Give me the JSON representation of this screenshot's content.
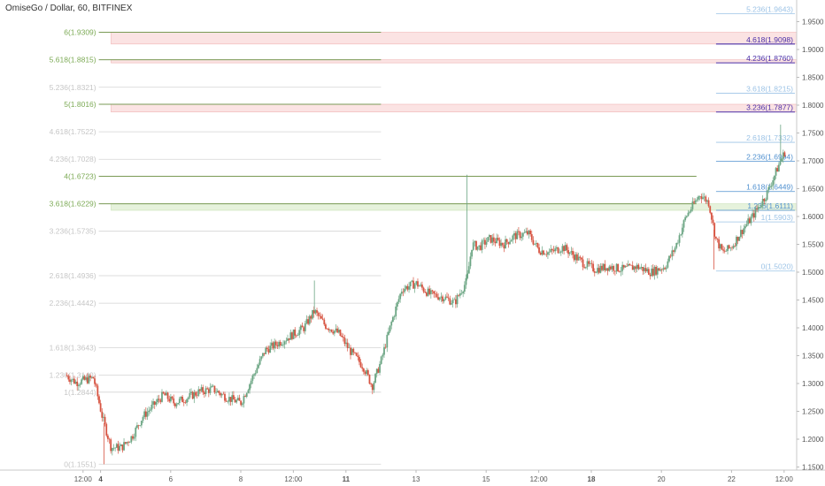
{
  "header": {
    "title": "OmiseGo / Dollar, 60, BITFINEX"
  },
  "colors": {
    "up": "#6ba583",
    "down": "#d75442",
    "fib_green": "#7caa55",
    "fib_grey": "#bdbdbd",
    "fib_blue": "#4e8fcf",
    "fib_purple": "#4a2fa8",
    "fib_light_blue": "#9cc3e6",
    "zone_red": "#fbe3e3",
    "zone_green": "#e6f2dc"
  },
  "chart_data": {
    "type": "candlestick",
    "title": "OmiseGo / Dollar, 60, BITFINEX",
    "y_range": [
      1.14,
      1.98
    ],
    "y_ticks": [
      "1.9500",
      "1.9000",
      "1.8500",
      "1.8000",
      "1.7500",
      "1.7000",
      "1.6500",
      "1.6000",
      "1.5500",
      "1.5000",
      "1.4500",
      "1.4000",
      "1.3500",
      "1.3000",
      "1.2500",
      "1.2000",
      "1.1500"
    ],
    "x_ticks": [
      {
        "label": "12:00",
        "x": 0.5,
        "bold": false
      },
      {
        "label": "4",
        "x": 1,
        "bold": true
      },
      {
        "label": "6",
        "x": 3,
        "bold": false
      },
      {
        "label": "8",
        "x": 5,
        "bold": false
      },
      {
        "label": "12:00",
        "x": 6.5,
        "bold": false
      },
      {
        "label": "11",
        "x": 8,
        "bold": true
      },
      {
        "label": "13",
        "x": 10,
        "bold": false
      },
      {
        "label": "15",
        "x": 12,
        "bold": false
      },
      {
        "label": "12:00",
        "x": 13.5,
        "bold": false
      },
      {
        "label": "18",
        "x": 15,
        "bold": true
      },
      {
        "label": "20",
        "x": 17,
        "bold": false
      },
      {
        "label": "22",
        "x": 19,
        "bold": false
      },
      {
        "label": "12:00",
        "x": 20.5,
        "bold": false
      }
    ],
    "price_path": [
      [
        0,
        1.315
      ],
      [
        0.3,
        1.302
      ],
      [
        0.8,
        1.31
      ],
      [
        1.05,
        1.24
      ],
      [
        1.3,
        1.185
      ],
      [
        1.6,
        1.185
      ],
      [
        1.9,
        1.205
      ],
      [
        2.2,
        1.24
      ],
      [
        2.5,
        1.26
      ],
      [
        2.8,
        1.28
      ],
      [
        3.1,
        1.265
      ],
      [
        3.5,
        1.275
      ],
      [
        3.8,
        1.285
      ],
      [
        4.2,
        1.29
      ],
      [
        4.6,
        1.275
      ],
      [
        5.0,
        1.265
      ],
      [
        5.4,
        1.32
      ],
      [
        5.7,
        1.36
      ],
      [
        6.0,
        1.37
      ],
      [
        6.4,
        1.385
      ],
      [
        6.8,
        1.4
      ],
      [
        7.1,
        1.43
      ],
      [
        7.4,
        1.405
      ],
      [
        7.8,
        1.39
      ],
      [
        8.1,
        1.36
      ],
      [
        8.5,
        1.33
      ],
      [
        8.75,
        1.295
      ],
      [
        9.0,
        1.34
      ],
      [
        9.3,
        1.41
      ],
      [
        9.6,
        1.47
      ],
      [
        10.0,
        1.48
      ],
      [
        10.4,
        1.46
      ],
      [
        10.8,
        1.455
      ],
      [
        11.1,
        1.445
      ],
      [
        11.45,
        1.485
      ],
      [
        11.6,
        1.55
      ],
      [
        11.8,
        1.545
      ],
      [
        12.1,
        1.56
      ],
      [
        12.5,
        1.55
      ],
      [
        12.8,
        1.565
      ],
      [
        13.2,
        1.57
      ],
      [
        13.5,
        1.54
      ],
      [
        13.8,
        1.535
      ],
      [
        14.2,
        1.545
      ],
      [
        14.5,
        1.53
      ],
      [
        14.8,
        1.515
      ],
      [
        15.1,
        1.505
      ],
      [
        15.5,
        1.51
      ],
      [
        15.9,
        1.505
      ],
      [
        16.3,
        1.51
      ],
      [
        16.7,
        1.5
      ],
      [
        17.1,
        1.51
      ],
      [
        17.4,
        1.545
      ],
      [
        17.7,
        1.6
      ],
      [
        17.95,
        1.625
      ],
      [
        18.1,
        1.64
      ],
      [
        18.35,
        1.625
      ],
      [
        18.55,
        1.56
      ],
      [
        18.75,
        1.535
      ],
      [
        19.0,
        1.545
      ],
      [
        19.3,
        1.575
      ],
      [
        19.6,
        1.6
      ],
      [
        20.0,
        1.64
      ],
      [
        20.4,
        1.7
      ],
      [
        20.55,
        1.72
      ]
    ],
    "spikes": [
      {
        "x": 11.45,
        "high": 1.675
      },
      {
        "x": 18.5,
        "low": 1.505
      },
      {
        "x": 20.4,
        "high": 1.765
      },
      {
        "x": 7.1,
        "high": 1.485
      },
      {
        "x": 1.1,
        "low": 1.155
      }
    ],
    "fib_left": [
      {
        "label": "6(1.9309)",
        "value": 1.9309,
        "x0": 0.95,
        "x1": 9.0,
        "style": "green-strong"
      },
      {
        "label": "5.618(1.8815)",
        "value": 1.8815,
        "x0": 0.95,
        "x1": 9.0,
        "style": "green-strong"
      },
      {
        "label": "5.236(1.8321)",
        "value": 1.8321,
        "x0": 0.95,
        "x1": 9.0,
        "style": "faded"
      },
      {
        "label": "5(1.8016)",
        "value": 1.8016,
        "x0": 0.95,
        "x1": 9.0,
        "style": "green-strong"
      },
      {
        "label": "4.618(1.7522)",
        "value": 1.7522,
        "x0": 0.95,
        "x1": 9.0,
        "style": "faded"
      },
      {
        "label": "4.236(1.7028)",
        "value": 1.7028,
        "x0": 0.95,
        "x1": 9.0,
        "style": "faded"
      },
      {
        "label": "4(1.6723)",
        "value": 1.6723,
        "x0": 0.95,
        "x1": 18.0,
        "style": "green-strong"
      },
      {
        "label": "3.618(1.6229)",
        "value": 1.6229,
        "x0": 0.95,
        "x1": 18.0,
        "style": "green-strong"
      },
      {
        "label": "3.236(1.5735)",
        "value": 1.5735,
        "x0": 0.95,
        "x1": 9.0,
        "style": "faded"
      },
      {
        "label": "2.618(1.4936)",
        "value": 1.4936,
        "x0": 0.95,
        "x1": 9.0,
        "style": "faded"
      },
      {
        "label": "2.236(1.4442)",
        "value": 1.4442,
        "x0": 0.95,
        "x1": 9.0,
        "style": "faded"
      },
      {
        "label": "1.618(1.3643)",
        "value": 1.3643,
        "x0": 0.95,
        "x1": 9.0,
        "style": "faded"
      },
      {
        "label": "1.236(1.3149)",
        "value": 1.3149,
        "x0": 0.95,
        "x1": 9.0,
        "style": "faded"
      },
      {
        "label": "1(1.2844)",
        "value": 1.2844,
        "x0": 0.95,
        "x1": 9.0,
        "style": "faded"
      },
      {
        "label": "0(1.1551)",
        "value": 1.1551,
        "x0": 0.95,
        "x1": 9.0,
        "style": "faded"
      }
    ],
    "fib_right": [
      {
        "label": "5.236(1.9643)",
        "value": 1.9643,
        "style": "light-blue"
      },
      {
        "label": "4.618(1.9098)",
        "value": 1.9098,
        "style": "purple"
      },
      {
        "label": "4.236(1.8760)",
        "value": 1.876,
        "style": "purple"
      },
      {
        "label": "3.618(1.8215)",
        "value": 1.8215,
        "style": "light-blue"
      },
      {
        "label": "3.236(1.7877)",
        "value": 1.7877,
        "style": "purple"
      },
      {
        "label": "2.618(1.7332)",
        "value": 1.7332,
        "style": "light-blue"
      },
      {
        "label": "2.236(1.6994)",
        "value": 1.6994,
        "style": "blue"
      },
      {
        "label": "1.618(1.6449)",
        "value": 1.6449,
        "style": "blue"
      },
      {
        "label": "1.236(1.6111)",
        "value": 1.6111,
        "style": "blue"
      },
      {
        "label": "1(1.5903)",
        "value": 1.5903,
        "style": "light-blue"
      },
      {
        "label": "0(1.5020)",
        "value": 1.502,
        "style": "light-blue"
      }
    ],
    "zones": [
      {
        "color": "red",
        "y0": 1.9098,
        "y1": 1.9309,
        "x0": 1.3
      },
      {
        "color": "red",
        "y0": 1.876,
        "y1": 1.8815,
        "x0": 1.3
      },
      {
        "color": "red",
        "y0": 1.7877,
        "y1": 1.8016,
        "x0": 1.3
      },
      {
        "color": "green",
        "y0": 1.6111,
        "y1": 1.6229,
        "x0": 1.3
      }
    ]
  }
}
